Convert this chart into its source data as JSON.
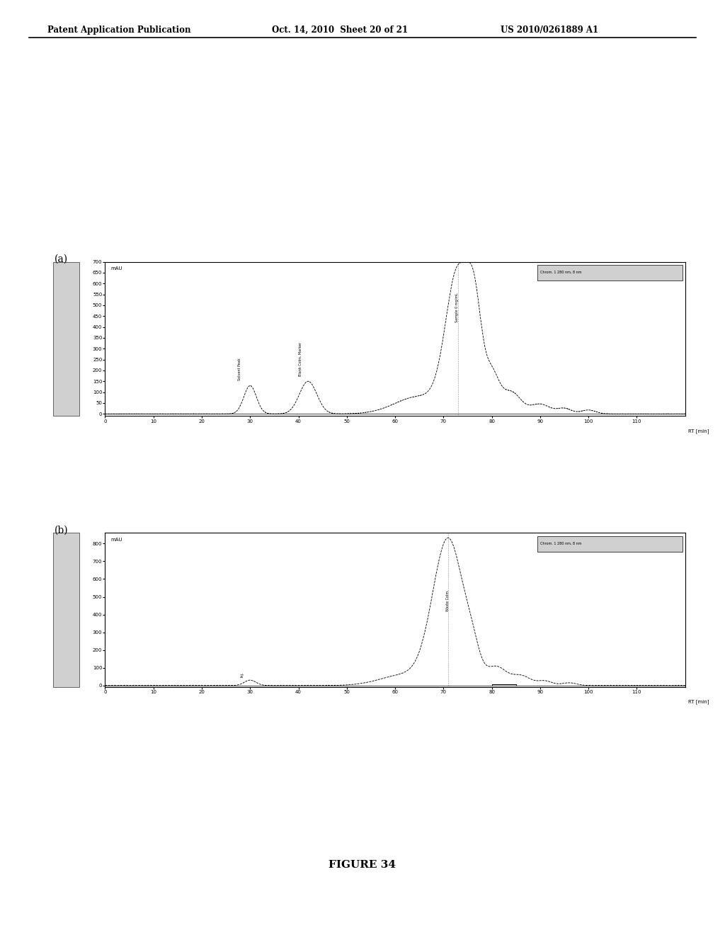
{
  "header_left": "Patent Application Publication",
  "header_mid": "Oct. 14, 2010  Sheet 20 of 21",
  "header_right": "US 2010/0261889 A1",
  "figure_caption": "FIGURE 34",
  "panel_a_label": "(a)",
  "panel_b_label": "(b)",
  "panel_a": {
    "ylabel": "mAU",
    "ylim": [
      -10,
      700
    ],
    "yticks": [
      0,
      50,
      100,
      150,
      200,
      250,
      300,
      350,
      400,
      450,
      500,
      550,
      600,
      650,
      700
    ],
    "xlim": [
      0,
      120
    ],
    "xticks": [
      0,
      10,
      20,
      30,
      40,
      50,
      60,
      70,
      80,
      90,
      100,
      110
    ],
    "xlabel": "RT [min]",
    "legend_text": "Chrom. 1 280 nm, 8 nm"
  },
  "panel_b": {
    "ylabel": "mAU",
    "ylim": [
      -10,
      860
    ],
    "yticks": [
      0,
      100,
      200,
      300,
      400,
      500,
      600,
      700,
      800
    ],
    "xlim": [
      0,
      120
    ],
    "xticks": [
      0,
      10,
      20,
      30,
      40,
      50,
      60,
      70,
      80,
      90,
      100,
      110
    ],
    "xlabel": "RT [min]",
    "legend_text": "Chrom. 1 280 nm, 8 nm"
  },
  "bg_color": "#ffffff",
  "line_color": "#000000",
  "box_color": "#d0d0d0"
}
